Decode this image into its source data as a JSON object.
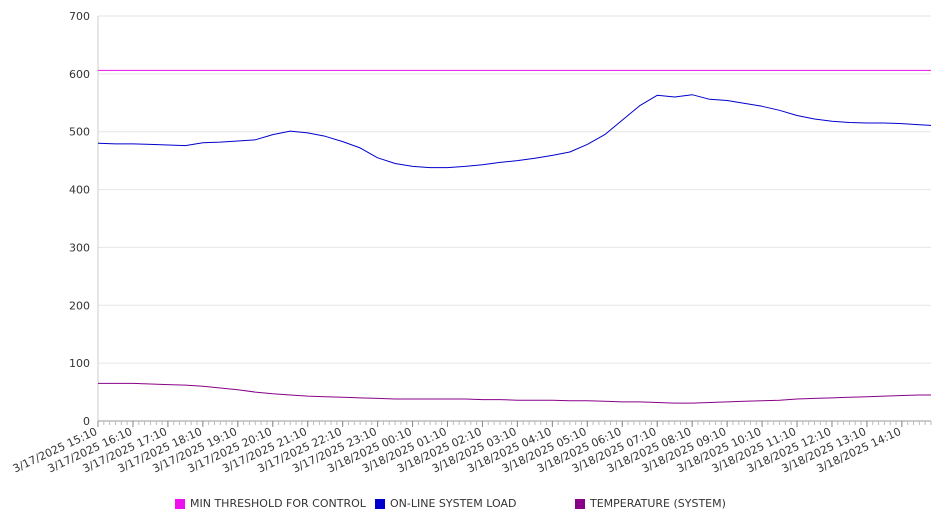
{
  "chart_data": {
    "type": "line",
    "title": "",
    "xlabel": "",
    "ylabel": "",
    "ylim": [
      0,
      700
    ],
    "yticks": [
      "0",
      "100",
      "200",
      "300",
      "400",
      "500",
      "600",
      "700"
    ],
    "grid": true,
    "legend_position": "bottom",
    "xticks": [
      "3/17/2025 15:10",
      "3/17/2025 16:10",
      "3/17/2025 17:10",
      "3/17/2025 18:10",
      "3/17/2025 19:10",
      "3/17/2025 20:10",
      "3/17/2025 21:10",
      "3/17/2025 22:10",
      "3/17/2025 23:10",
      "3/18/2025 00:10",
      "3/18/2025 01:10",
      "3/18/2025 02:10",
      "3/18/2025 03:10",
      "3/18/2025 04:10",
      "3/18/2025 05:10",
      "3/18/2025 06:10",
      "3/18/2025 07:10",
      "3/18/2025 08:10",
      "3/18/2025 09:10",
      "3/18/2025 10:10",
      "3/18/2025 11:10",
      "3/18/2025 12:10",
      "3/18/2025 13:10",
      "3/18/2025 14:10"
    ],
    "x": [
      "3/17/2025 15:10",
      "3/17/2025 15:40",
      "3/17/2025 16:10",
      "3/17/2025 16:40",
      "3/17/2025 17:10",
      "3/17/2025 17:40",
      "3/17/2025 18:10",
      "3/17/2025 18:40",
      "3/17/2025 19:10",
      "3/17/2025 19:40",
      "3/17/2025 20:10",
      "3/17/2025 20:40",
      "3/17/2025 21:10",
      "3/17/2025 21:40",
      "3/17/2025 22:10",
      "3/17/2025 22:40",
      "3/17/2025 23:10",
      "3/17/2025 23:40",
      "3/18/2025 00:10",
      "3/18/2025 00:40",
      "3/18/2025 01:10",
      "3/18/2025 01:40",
      "3/18/2025 02:10",
      "3/18/2025 02:40",
      "3/18/2025 03:10",
      "3/18/2025 03:40",
      "3/18/2025 04:10",
      "3/18/2025 04:40",
      "3/18/2025 05:10",
      "3/18/2025 05:40",
      "3/18/2025 06:10",
      "3/18/2025 06:40",
      "3/18/2025 07:10",
      "3/18/2025 07:40",
      "3/18/2025 08:10",
      "3/18/2025 08:40",
      "3/18/2025 09:10",
      "3/18/2025 09:40",
      "3/18/2025 10:10",
      "3/18/2025 10:40",
      "3/18/2025 11:10",
      "3/18/2025 11:40",
      "3/18/2025 12:10",
      "3/18/2025 12:40",
      "3/18/2025 13:10",
      "3/18/2025 13:40",
      "3/18/2025 14:10",
      "3/18/2025 14:40",
      "3/18/2025 15:00"
    ],
    "series": [
      {
        "name": "MIN THRESHOLD FOR CONTROL",
        "color": "#ee11ee",
        "values": [
          606,
          606,
          606,
          606,
          606,
          606,
          606,
          606,
          606,
          606,
          606,
          606,
          606,
          606,
          606,
          606,
          606,
          606,
          606,
          606,
          606,
          606,
          606,
          606,
          606,
          606,
          606,
          606,
          606,
          606,
          606,
          606,
          606,
          606,
          606,
          606,
          606,
          606,
          606,
          606,
          606,
          606,
          606,
          606,
          606,
          606,
          606,
          606,
          606
        ]
      },
      {
        "name": "ON-LINE SYSTEM LOAD",
        "color": "#0000cc",
        "values": [
          480,
          479,
          479,
          478,
          477,
          476,
          481,
          482,
          484,
          486,
          495,
          501,
          498,
          492,
          483,
          472,
          455,
          445,
          440,
          438,
          438,
          440,
          443,
          447,
          450,
          454,
          459,
          465,
          478,
          495,
          520,
          545,
          563,
          560,
          564,
          556,
          554,
          549,
          544,
          537,
          528,
          522,
          518,
          516,
          515,
          515,
          514,
          512,
          511
        ]
      },
      {
        "name": "TEMPERATURE (SYSTEM)",
        "color": "#880088",
        "values": [
          65,
          65,
          65,
          64,
          63,
          62,
          60,
          57,
          54,
          50,
          47,
          45,
          43,
          42,
          41,
          40,
          39,
          38,
          38,
          38,
          38,
          38,
          37,
          37,
          36,
          36,
          36,
          35,
          35,
          34,
          33,
          33,
          32,
          31,
          31,
          32,
          33,
          34,
          35,
          36,
          38,
          39,
          40,
          41,
          42,
          43,
          44,
          45,
          45
        ]
      }
    ]
  }
}
